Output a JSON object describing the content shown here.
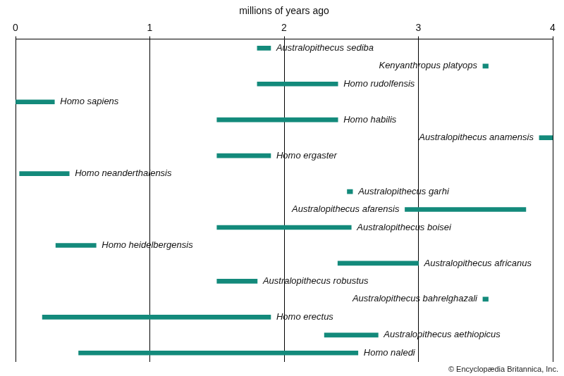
{
  "chart_data": {
    "type": "bar",
    "orientation": "horizontal",
    "x_label": "millions of years ago",
    "categories": [
      "Australopithecus sediba",
      "Kenyanthropus platyops",
      "Homo rudolfensis",
      "Homo sapiens",
      "Homo habilis",
      "Australopithecus anamensis",
      "Homo ergaster",
      "Homo neanderthalensis",
      "Australopithecus garhi",
      "Australopithecus afarensis",
      "Australopithecus boisei",
      "Homo heidelbergensis",
      "Australopithecus africanus",
      "Australopithecus robustus",
      "Australopithecus bahrelghazali",
      "Homo erectus",
      "Australopithecus aethiopicus",
      "Homo naledi"
    ],
    "values": [
      [
        1.8,
        1.9
      ],
      [
        3.48,
        3.52
      ],
      [
        1.8,
        2.4
      ],
      [
        0,
        0.29
      ],
      [
        1.5,
        2.4
      ],
      [
        3.9,
        4
      ],
      [
        1.5,
        1.9
      ],
      [
        0.03,
        0.4
      ],
      [
        2.47,
        2.51
      ],
      [
        2.9,
        3.8
      ],
      [
        1.5,
        2.5
      ],
      [
        0.3,
        0.6
      ],
      [
        2.4,
        3
      ],
      [
        1.5,
        1.8
      ],
      [
        3.48,
        3.52
      ],
      [
        0.2,
        1.9
      ],
      [
        2.3,
        2.7
      ],
      [
        0.47,
        2.55
      ]
    ],
    "color": "#138a7b",
    "xlim": [
      0,
      4
    ],
    "xticks": [
      0,
      1,
      2,
      3,
      4
    ],
    "grid": true,
    "tick_labels": "x"
  },
  "credit": "© Encyclopædia Britannica, Inc."
}
